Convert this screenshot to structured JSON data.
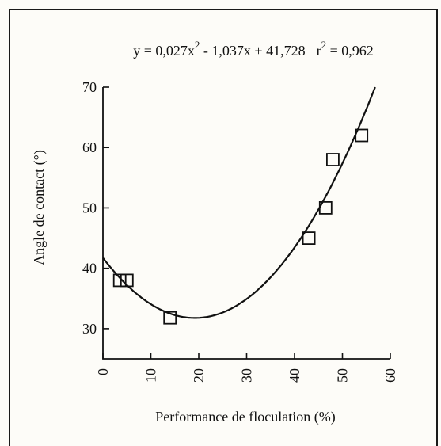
{
  "chart_data": {
    "type": "scatter",
    "annotation": {
      "equation": "y = 0,027x",
      "equation_exp": "2",
      "equation_rest": " - 1,037x + 41,728",
      "r_label": "r",
      "r_exp": "2",
      "r_value": " = 0,962"
    },
    "xlabel": "Performance de floculation (%)",
    "ylabel": "Angle de contact (°)",
    "xlim": [
      0,
      60
    ],
    "ylim": [
      25,
      70
    ],
    "x_ticks": [
      0,
      10,
      20,
      30,
      40,
      50,
      60
    ],
    "x_tick_labels": [
      "0",
      "10",
      "20",
      "30",
      "40",
      "50",
      "60"
    ],
    "y_ticks": [
      30,
      40,
      50,
      60,
      70
    ],
    "y_tick_labels": [
      "30",
      "40",
      "50",
      "60",
      "70"
    ],
    "grid": false,
    "series": [
      {
        "marker": "open-square",
        "x": [
          3.5,
          5,
          14,
          43,
          46.5,
          48,
          54
        ],
        "y": [
          38,
          38,
          31.8,
          45,
          50,
          58,
          62
        ]
      }
    ],
    "fit": {
      "type": "polynomial",
      "coefficients": [
        0.027,
        -1.037,
        41.728
      ]
    }
  }
}
